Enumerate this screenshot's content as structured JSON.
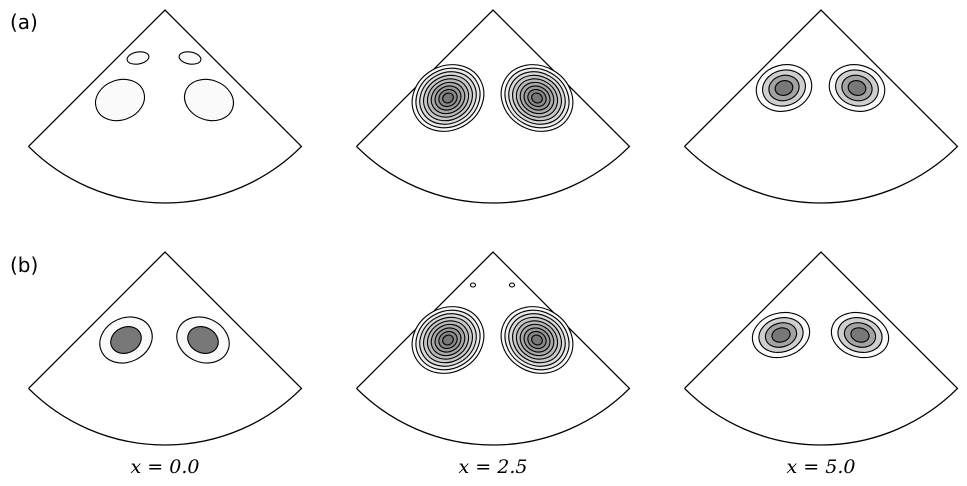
{
  "panels": [
    {
      "label": "(a)"
    },
    {
      "label": "(b)"
    }
  ],
  "columns": [
    {
      "label": "x = 0.0"
    },
    {
      "label": "x = 2.5"
    },
    {
      "label": "x = 5.0"
    }
  ]
}
